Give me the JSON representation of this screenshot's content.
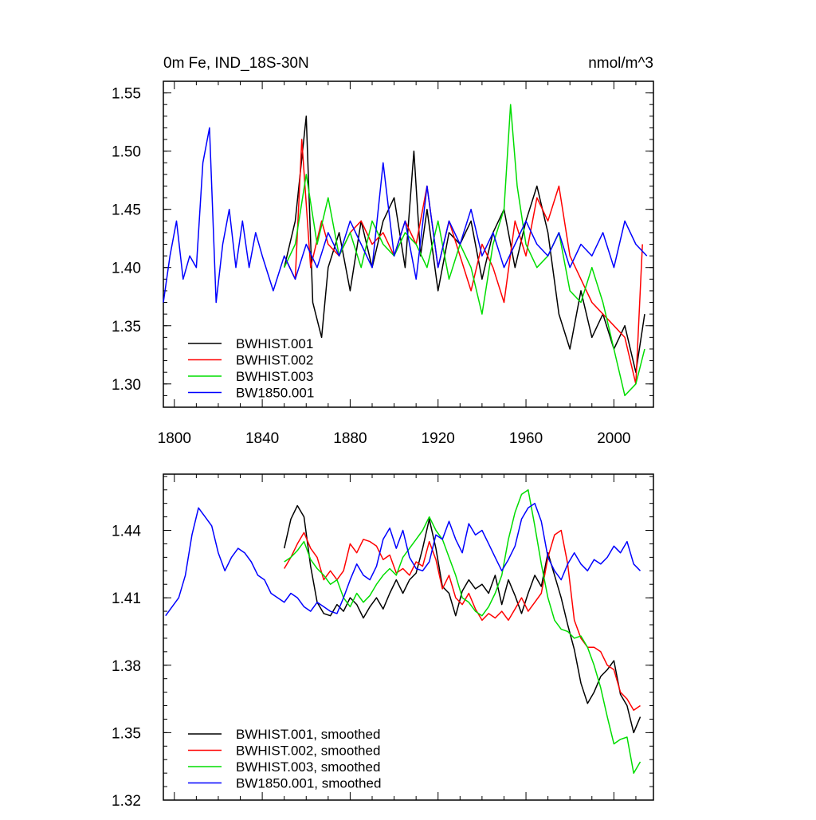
{
  "chart_data": [
    {
      "type": "line",
      "title": "0m Fe, IND_18S-30N",
      "units": "nmol/m^3",
      "xlim": [
        1795,
        2018
      ],
      "ylim": [
        1.28,
        1.56
      ],
      "x_ticks": [
        1800,
        1840,
        1880,
        1920,
        1960,
        2000
      ],
      "y_ticks": [
        1.55,
        1.5,
        1.45,
        1.4,
        1.35,
        1.3
      ],
      "y_tick_labels": [
        "1.55",
        "1.50",
        "1.45",
        "1.40",
        "1.35",
        "1.30"
      ],
      "legend_position": "bottom-left",
      "series": [
        {
          "name": "BWHIST.001",
          "color": "#000000",
          "x": [
            1850,
            1855,
            1860,
            1863,
            1867,
            1870,
            1875,
            1880,
            1885,
            1890,
            1895,
            1900,
            1905,
            1909,
            1912,
            1915,
            1920,
            1925,
            1930,
            1935,
            1940,
            1945,
            1950,
            1955,
            1960,
            1965,
            1970,
            1975,
            1980,
            1985,
            1990,
            1995,
            2000,
            2005,
            2010,
            2014
          ],
          "y": [
            1.4,
            1.44,
            1.53,
            1.37,
            1.34,
            1.4,
            1.43,
            1.38,
            1.44,
            1.4,
            1.44,
            1.46,
            1.4,
            1.5,
            1.41,
            1.45,
            1.38,
            1.43,
            1.42,
            1.44,
            1.39,
            1.43,
            1.45,
            1.4,
            1.44,
            1.47,
            1.43,
            1.36,
            1.33,
            1.38,
            1.34,
            1.36,
            1.33,
            1.35,
            1.31,
            1.36
          ]
        },
        {
          "name": "BWHIST.002",
          "color": "#ff0000",
          "x": [
            1850,
            1855,
            1858,
            1862,
            1867,
            1870,
            1875,
            1880,
            1885,
            1890,
            1895,
            1900,
            1905,
            1910,
            1915,
            1920,
            1925,
            1930,
            1935,
            1940,
            1945,
            1950,
            1955,
            1960,
            1965,
            1970,
            1975,
            1980,
            1985,
            1990,
            1995,
            2000,
            2005,
            2010,
            2013
          ],
          "y": [
            1.41,
            1.39,
            1.51,
            1.4,
            1.44,
            1.42,
            1.41,
            1.43,
            1.44,
            1.42,
            1.43,
            1.41,
            1.44,
            1.42,
            1.47,
            1.4,
            1.44,
            1.41,
            1.38,
            1.42,
            1.4,
            1.37,
            1.44,
            1.41,
            1.46,
            1.44,
            1.47,
            1.41,
            1.39,
            1.37,
            1.36,
            1.35,
            1.34,
            1.3,
            1.42
          ]
        },
        {
          "name": "BWHIST.003",
          "color": "#00dd00",
          "x": [
            1850,
            1855,
            1860,
            1865,
            1870,
            1875,
            1880,
            1885,
            1890,
            1895,
            1900,
            1905,
            1910,
            1915,
            1920,
            1925,
            1930,
            1935,
            1940,
            1945,
            1950,
            1953,
            1956,
            1960,
            1965,
            1970,
            1975,
            1980,
            1985,
            1990,
            1995,
            2000,
            2005,
            2010,
            2014
          ],
          "y": [
            1.4,
            1.42,
            1.48,
            1.42,
            1.46,
            1.41,
            1.43,
            1.4,
            1.44,
            1.42,
            1.41,
            1.43,
            1.42,
            1.4,
            1.44,
            1.39,
            1.42,
            1.4,
            1.36,
            1.42,
            1.45,
            1.54,
            1.47,
            1.42,
            1.4,
            1.41,
            1.43,
            1.38,
            1.37,
            1.4,
            1.37,
            1.33,
            1.29,
            1.3,
            1.33
          ]
        },
        {
          "name": "BW1850.001",
          "color": "#0000ff",
          "x": [
            1795,
            1798,
            1801,
            1804,
            1807,
            1810,
            1813,
            1816,
            1819,
            1822,
            1825,
            1828,
            1831,
            1834,
            1837,
            1840,
            1845,
            1850,
            1855,
            1860,
            1865,
            1870,
            1875,
            1880,
            1885,
            1890,
            1895,
            1900,
            1905,
            1910,
            1915,
            1920,
            1925,
            1930,
            1935,
            1940,
            1945,
            1950,
            1955,
            1960,
            1965,
            1970,
            1975,
            1980,
            1985,
            1990,
            1995,
            2000,
            2005,
            2010,
            2015
          ],
          "y": [
            1.37,
            1.41,
            1.44,
            1.39,
            1.41,
            1.4,
            1.49,
            1.52,
            1.37,
            1.42,
            1.45,
            1.4,
            1.44,
            1.4,
            1.43,
            1.41,
            1.38,
            1.41,
            1.39,
            1.42,
            1.4,
            1.43,
            1.41,
            1.44,
            1.42,
            1.4,
            1.49,
            1.41,
            1.44,
            1.39,
            1.47,
            1.4,
            1.44,
            1.42,
            1.45,
            1.41,
            1.43,
            1.4,
            1.42,
            1.44,
            1.42,
            1.41,
            1.43,
            1.4,
            1.42,
            1.41,
            1.43,
            1.4,
            1.44,
            1.42,
            1.41
          ]
        }
      ]
    },
    {
      "type": "line",
      "xlim": [
        1795,
        2018
      ],
      "ylim": [
        1.32,
        1.465
      ],
      "x_ticks": [
        1800,
        1840,
        1880,
        1920,
        1960,
        2000
      ],
      "y_ticks": [
        1.44,
        1.41,
        1.38,
        1.35,
        1.32
      ],
      "y_tick_labels": [
        "1.44",
        "1.41",
        "1.38",
        "1.35",
        "1.32"
      ],
      "legend_position": "bottom-left",
      "series": [
        {
          "name": "BWHIST.001, smoothed",
          "color": "#000000",
          "x": [
            1850,
            1853,
            1856,
            1859,
            1862,
            1865,
            1868,
            1871,
            1874,
            1877,
            1880,
            1883,
            1886,
            1889,
            1892,
            1895,
            1898,
            1901,
            1904,
            1907,
            1910,
            1913,
            1916,
            1919,
            1922,
            1925,
            1928,
            1931,
            1934,
            1937,
            1940,
            1943,
            1946,
            1949,
            1952,
            1955,
            1958,
            1961,
            1964,
            1967,
            1970,
            1973,
            1976,
            1979,
            1982,
            1985,
            1988,
            1991,
            1994,
            1997,
            2000,
            2003,
            2006,
            2009,
            2012
          ],
          "y": [
            1.432,
            1.445,
            1.451,
            1.446,
            1.424,
            1.408,
            1.403,
            1.402,
            1.407,
            1.404,
            1.41,
            1.407,
            1.401,
            1.406,
            1.41,
            1.405,
            1.412,
            1.418,
            1.412,
            1.418,
            1.421,
            1.432,
            1.445,
            1.432,
            1.415,
            1.412,
            1.402,
            1.413,
            1.418,
            1.414,
            1.416,
            1.412,
            1.42,
            1.407,
            1.418,
            1.411,
            1.403,
            1.412,
            1.42,
            1.415,
            1.43,
            1.42,
            1.41,
            1.398,
            1.387,
            1.372,
            1.363,
            1.368,
            1.375,
            1.378,
            1.382,
            1.367,
            1.362,
            1.35,
            1.357
          ]
        },
        {
          "name": "BWHIST.002, smoothed",
          "color": "#ff0000",
          "x": [
            1850,
            1853,
            1856,
            1859,
            1862,
            1865,
            1868,
            1871,
            1874,
            1877,
            1880,
            1883,
            1886,
            1889,
            1892,
            1895,
            1898,
            1901,
            1904,
            1907,
            1910,
            1913,
            1916,
            1919,
            1922,
            1925,
            1928,
            1931,
            1934,
            1937,
            1940,
            1943,
            1946,
            1949,
            1952,
            1955,
            1958,
            1961,
            1964,
            1967,
            1970,
            1973,
            1976,
            1979,
            1982,
            1985,
            1988,
            1991,
            1994,
            1997,
            2000,
            2003,
            2006,
            2009,
            2012
          ],
          "y": [
            1.423,
            1.428,
            1.434,
            1.439,
            1.432,
            1.428,
            1.418,
            1.422,
            1.418,
            1.422,
            1.434,
            1.43,
            1.436,
            1.435,
            1.433,
            1.427,
            1.429,
            1.421,
            1.423,
            1.42,
            1.426,
            1.424,
            1.435,
            1.427,
            1.414,
            1.42,
            1.41,
            1.407,
            1.412,
            1.405,
            1.4,
            1.403,
            1.401,
            1.404,
            1.4,
            1.405,
            1.41,
            1.404,
            1.408,
            1.412,
            1.428,
            1.438,
            1.44,
            1.425,
            1.4,
            1.392,
            1.388,
            1.388,
            1.386,
            1.38,
            1.378,
            1.368,
            1.365,
            1.36,
            1.362
          ]
        },
        {
          "name": "BWHIST.003, smoothed",
          "color": "#00dd00",
          "x": [
            1850,
            1853,
            1856,
            1859,
            1862,
            1865,
            1868,
            1871,
            1874,
            1877,
            1880,
            1883,
            1886,
            1889,
            1892,
            1895,
            1898,
            1901,
            1904,
            1907,
            1910,
            1913,
            1916,
            1919,
            1922,
            1925,
            1928,
            1931,
            1934,
            1937,
            1940,
            1943,
            1946,
            1949,
            1952,
            1955,
            1958,
            1961,
            1964,
            1967,
            1970,
            1973,
            1976,
            1979,
            1982,
            1985,
            1988,
            1991,
            1994,
            1997,
            2000,
            2003,
            2006,
            2009,
            2012
          ],
          "y": [
            1.426,
            1.428,
            1.431,
            1.435,
            1.427,
            1.423,
            1.42,
            1.416,
            1.418,
            1.41,
            1.406,
            1.412,
            1.408,
            1.411,
            1.416,
            1.42,
            1.423,
            1.42,
            1.428,
            1.432,
            1.436,
            1.44,
            1.446,
            1.44,
            1.436,
            1.428,
            1.42,
            1.41,
            1.408,
            1.404,
            1.402,
            1.406,
            1.412,
            1.42,
            1.436,
            1.448,
            1.456,
            1.458,
            1.442,
            1.425,
            1.41,
            1.4,
            1.396,
            1.395,
            1.392,
            1.393,
            1.388,
            1.38,
            1.37,
            1.357,
            1.345,
            1.347,
            1.348,
            1.332,
            1.337
          ]
        },
        {
          "name": "BW1850.001, smoothed",
          "color": "#0000ff",
          "x": [
            1796,
            1799,
            1802,
            1805,
            1808,
            1811,
            1814,
            1817,
            1820,
            1823,
            1826,
            1829,
            1832,
            1835,
            1838,
            1841,
            1844,
            1847,
            1850,
            1853,
            1856,
            1859,
            1862,
            1865,
            1868,
            1871,
            1874,
            1877,
            1880,
            1883,
            1886,
            1889,
            1892,
            1895,
            1898,
            1901,
            1904,
            1907,
            1910,
            1913,
            1916,
            1919,
            1922,
            1925,
            1928,
            1931,
            1934,
            1937,
            1940,
            1943,
            1946,
            1949,
            1952,
            1955,
            1958,
            1961,
            1964,
            1967,
            1970,
            1973,
            1976,
            1979,
            1982,
            1985,
            1988,
            1991,
            1994,
            1997,
            2000,
            2003,
            2006,
            2009,
            2012
          ],
          "y": [
            1.402,
            1.406,
            1.41,
            1.42,
            1.438,
            1.45,
            1.446,
            1.442,
            1.43,
            1.422,
            1.428,
            1.432,
            1.43,
            1.426,
            1.42,
            1.418,
            1.412,
            1.41,
            1.408,
            1.412,
            1.41,
            1.406,
            1.404,
            1.408,
            1.406,
            1.404,
            1.403,
            1.41,
            1.418,
            1.425,
            1.42,
            1.418,
            1.424,
            1.436,
            1.441,
            1.432,
            1.44,
            1.428,
            1.423,
            1.422,
            1.426,
            1.438,
            1.436,
            1.444,
            1.436,
            1.43,
            1.443,
            1.438,
            1.44,
            1.434,
            1.428,
            1.422,
            1.427,
            1.433,
            1.445,
            1.45,
            1.452,
            1.444,
            1.428,
            1.422,
            1.418,
            1.425,
            1.43,
            1.425,
            1.422,
            1.427,
            1.425,
            1.428,
            1.433,
            1.43,
            1.435,
            1.425,
            1.422
          ]
        }
      ]
    }
  ]
}
